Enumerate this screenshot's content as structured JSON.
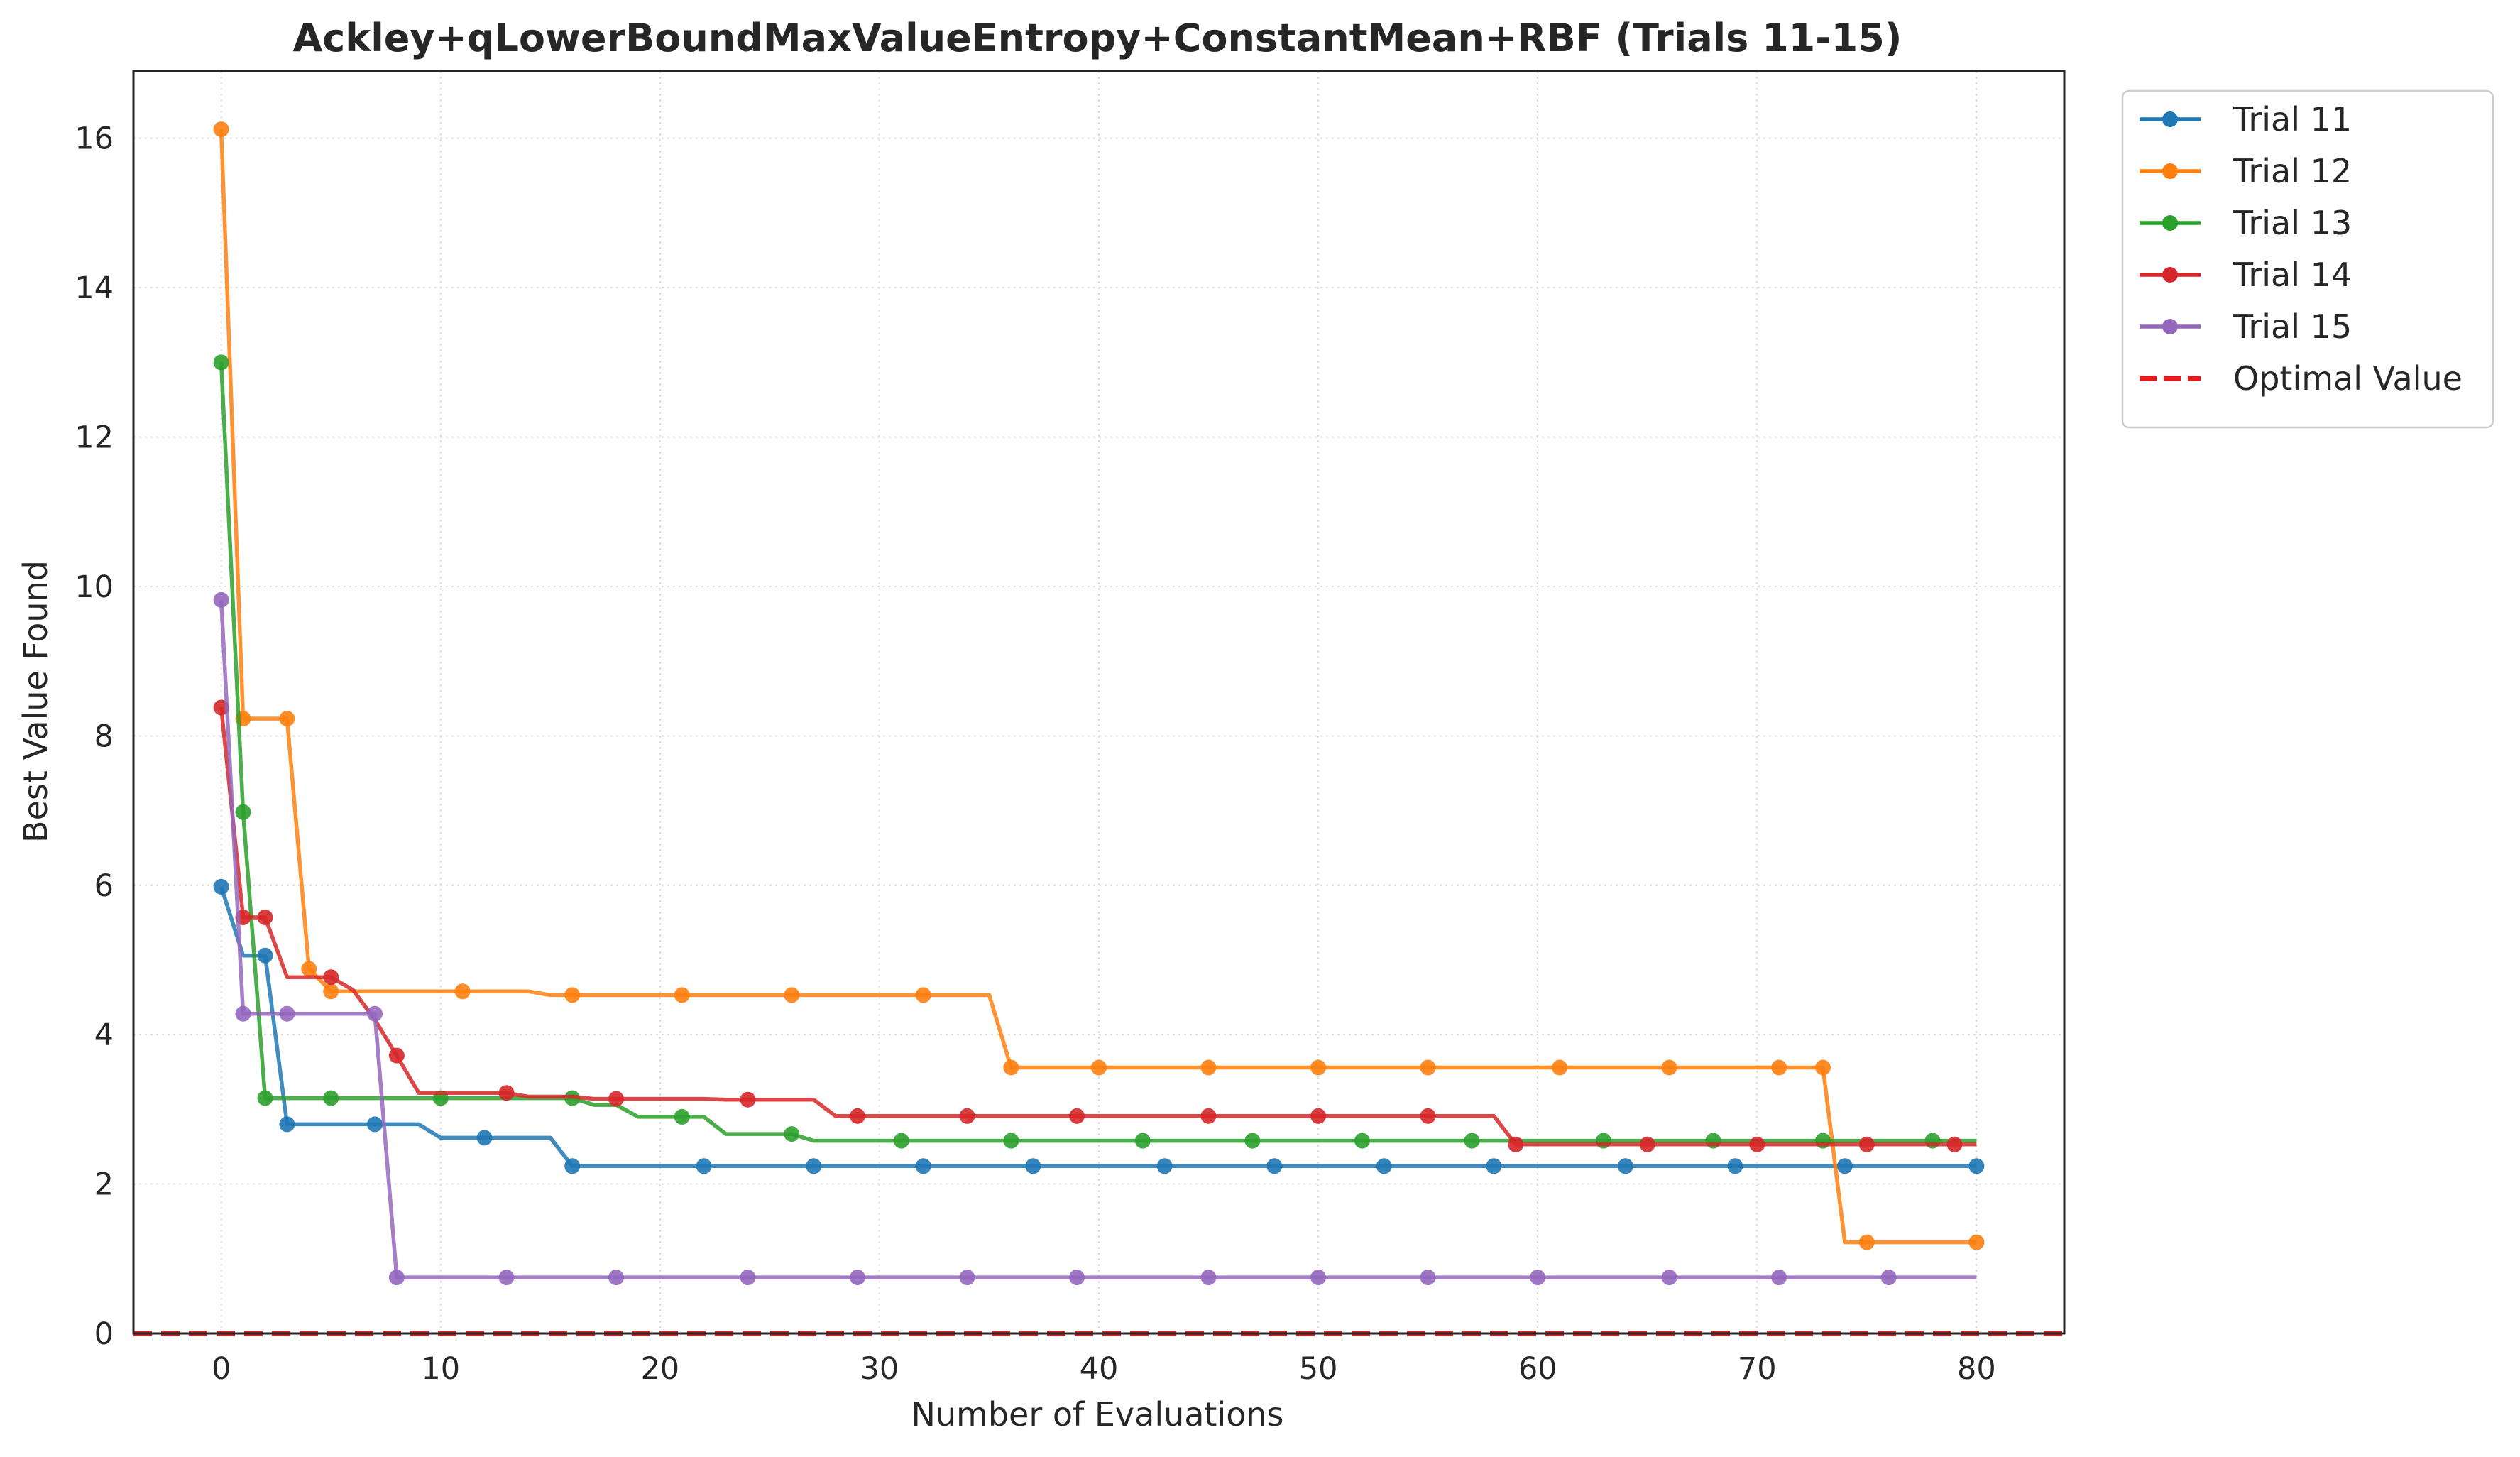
{
  "chart_data": {
    "type": "line",
    "title": "Ackley+qLowerBoundMaxValueEntropy+ConstantMean+RBF (Trials 11-15)",
    "xlabel": "Number of Evaluations",
    "ylabel": "Best Value Found",
    "xlim": [
      -4,
      84
    ],
    "ylim": [
      0,
      16.9
    ],
    "xticks": [
      0,
      10,
      20,
      30,
      40,
      50,
      60,
      70,
      80
    ],
    "yticks": [
      0,
      2,
      4,
      6,
      8,
      10,
      12,
      14,
      16
    ],
    "grid": true,
    "legend_position": "outside-top-right",
    "series": [
      {
        "name": "Trial 11",
        "color": "#1f77b4",
        "points": [
          [
            0,
            5.98
          ],
          [
            1,
            5.06
          ],
          [
            2,
            5.06
          ],
          [
            3,
            2.8
          ],
          [
            9,
            2.8
          ],
          [
            10,
            2.62
          ],
          [
            15,
            2.62
          ],
          [
            16,
            2.24
          ],
          [
            80,
            2.24
          ]
        ],
        "markers": [
          0,
          2,
          3,
          7,
          12,
          16,
          22,
          27,
          32,
          37,
          43,
          48,
          53,
          58,
          64,
          69,
          74,
          80
        ]
      },
      {
        "name": "Trial 12",
        "color": "#ff7f0e",
        "points": [
          [
            0,
            16.12
          ],
          [
            1,
            8.23
          ],
          [
            3,
            8.23
          ],
          [
            4,
            4.88
          ],
          [
            5,
            4.58
          ],
          [
            14,
            4.58
          ],
          [
            15,
            4.53
          ],
          [
            35,
            4.53
          ],
          [
            36,
            3.56
          ],
          [
            73,
            3.56
          ],
          [
            74,
            1.22
          ],
          [
            80,
            1.22
          ]
        ],
        "markers": [
          0,
          1,
          3,
          4,
          5,
          11,
          16,
          21,
          26,
          32,
          36,
          40,
          45,
          50,
          55,
          61,
          66,
          71,
          73,
          75,
          80
        ]
      },
      {
        "name": "Trial 13",
        "color": "#2ca02c",
        "points": [
          [
            0,
            13.0
          ],
          [
            1,
            6.98
          ],
          [
            2,
            3.15
          ],
          [
            16,
            3.15
          ],
          [
            17,
            3.06
          ],
          [
            18,
            3.06
          ],
          [
            19,
            2.9
          ],
          [
            22,
            2.9
          ],
          [
            23,
            2.67
          ],
          [
            26,
            2.67
          ],
          [
            27,
            2.58
          ],
          [
            80,
            2.58
          ]
        ],
        "markers": [
          0,
          1,
          2,
          5,
          10,
          16,
          21,
          26,
          31,
          36,
          42,
          47,
          52,
          57,
          63,
          68,
          73,
          78
        ]
      },
      {
        "name": "Trial 14",
        "color": "#d62728",
        "points": [
          [
            0,
            8.38
          ],
          [
            1,
            5.57
          ],
          [
            2,
            5.57
          ],
          [
            3,
            4.77
          ],
          [
            5,
            4.77
          ],
          [
            6,
            4.6
          ],
          [
            7,
            4.2
          ],
          [
            8,
            3.72
          ],
          [
            9,
            3.22
          ],
          [
            13,
            3.22
          ],
          [
            14,
            3.17
          ],
          [
            16,
            3.17
          ],
          [
            17,
            3.14
          ],
          [
            22,
            3.14
          ],
          [
            23,
            3.13
          ],
          [
            27,
            3.13
          ],
          [
            28,
            2.91
          ],
          [
            58,
            2.91
          ],
          [
            59,
            2.53
          ],
          [
            80,
            2.53
          ]
        ],
        "markers": [
          0,
          1,
          2,
          5,
          8,
          13,
          18,
          24,
          29,
          34,
          39,
          45,
          50,
          55,
          59,
          65,
          70,
          75,
          79
        ]
      },
      {
        "name": "Trial 15",
        "color": "#9467bd",
        "points": [
          [
            0,
            9.82
          ],
          [
            1,
            4.28
          ],
          [
            7,
            4.28
          ],
          [
            8,
            0.75
          ],
          [
            80,
            0.75
          ]
        ],
        "markers": [
          0,
          1,
          3,
          7,
          8,
          13,
          18,
          24,
          29,
          34,
          39,
          45,
          50,
          55,
          60,
          66,
          71,
          76
        ]
      }
    ],
    "reference_line": {
      "name": "Optimal Value",
      "y": 0,
      "color": "#e41a1c",
      "style": "dashed"
    }
  }
}
